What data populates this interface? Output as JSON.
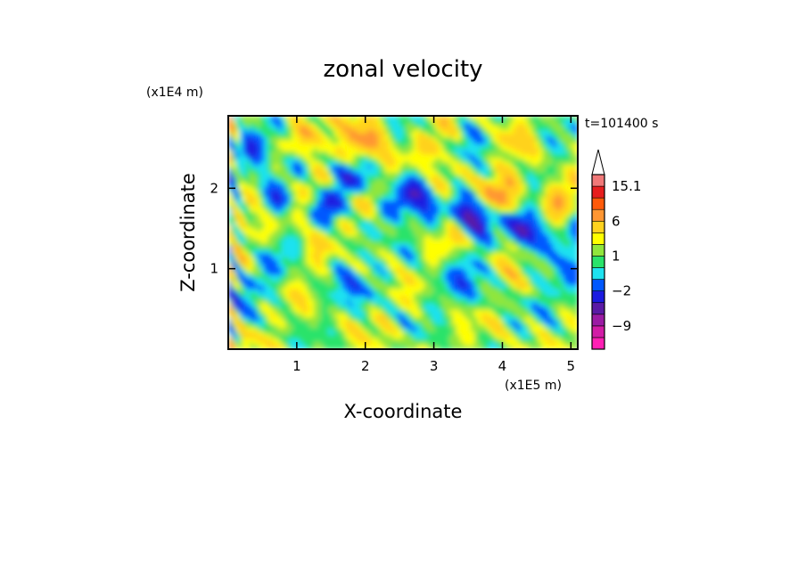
{
  "chart_data": {
    "type": "heatmap",
    "title": "zonal velocity",
    "xlabel": "X-coordinate",
    "ylabel": "Z-coordinate",
    "x_unit": "(x1E5 m)",
    "y_unit": "(x1E4 m)",
    "time_label": "t=101400 s",
    "xlim": [
      0,
      5.1
    ],
    "ylim": [
      0,
      2.9
    ],
    "x_ticks": [
      1,
      2,
      3,
      4,
      5
    ],
    "y_ticks": [
      1,
      2
    ],
    "colorbar": {
      "levels": [
        -15,
        -12,
        -9,
        -6,
        -4,
        -2,
        -1,
        0,
        1,
        2,
        4,
        6,
        9,
        12,
        15.1
      ],
      "colors": [
        "#ff1fb4",
        "#d21ca6",
        "#9b1ba4",
        "#5a1aa5",
        "#1b1be0",
        "#0058ff",
        "#1ee2f0",
        "#29e36a",
        "#90e63c",
        "#ffff00",
        "#ffd21e",
        "#ff9632",
        "#ff5a0a",
        "#e61e1e",
        "#f07878",
        "#fac8c8"
      ],
      "labels": [
        {
          "value": 15.1,
          "text": "15.1"
        },
        {
          "value": 6,
          "text": "6"
        },
        {
          "value": 1,
          "text": "1"
        },
        {
          "value": -2,
          "text": "−2"
        },
        {
          "value": -9,
          "text": "−9"
        }
      ]
    }
  }
}
